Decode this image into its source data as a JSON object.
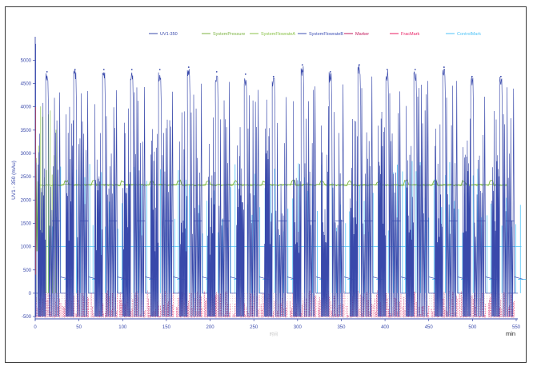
{
  "chart_data": {
    "type": "line",
    "ylabel": "UV1 - 350 (mAu)",
    "xunit": "min",
    "xlabel_faint": "时间",
    "xlim": [
      0,
      550
    ],
    "ylim": [
      -550,
      5400
    ],
    "xticks": [
      0,
      50,
      100,
      150,
      200,
      250,
      300,
      350,
      400,
      450,
      500,
      550
    ],
    "yticks": [
      -500,
      0,
      500,
      1000,
      1500,
      2000,
      2500,
      3000,
      3500,
      4000,
      4500,
      5000
    ],
    "colors": {
      "UV1-350": "#3949ab",
      "SystemPressure": "#7cb342",
      "SystemFlowrateA": "#8bc34a",
      "SystemFlowrateB": "#3f51b5",
      "Marker": "#c2185b",
      "FracMark": "#e91e63",
      "ControlMark": "#4fc3f7",
      "axis": "#3949ab"
    },
    "series": [
      {
        "name": "UV1-350",
        "cycles_start_min": [
          13,
          45,
          78,
          110,
          142,
          175,
          207,
          240,
          272,
          305,
          337,
          370,
          402,
          434,
          467,
          499,
          532
        ],
        "peak_mAu": [
          4750,
          4800,
          4800,
          4800,
          4800,
          4850,
          4750,
          4700,
          4650,
          4900,
          4750,
          4900,
          4800,
          4800,
          4850,
          4650,
          4650
        ]
      },
      {
        "name": "SystemPressure",
        "baseline": 2320
      },
      {
        "name": "SystemFlowrateA",
        "baseline": 2330
      },
      {
        "name": "SystemFlowrateB",
        "baseline": 1000
      },
      {
        "name": "Marker"
      },
      {
        "name": "FracMark"
      },
      {
        "name": "ControlMark",
        "baseline": 1000
      }
    ]
  }
}
